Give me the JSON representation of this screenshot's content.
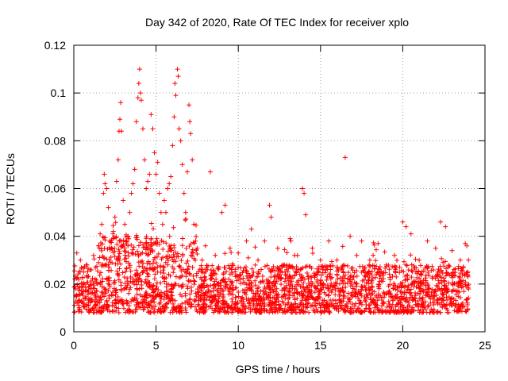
{
  "chart_data": {
    "type": "scatter",
    "title": "Day 342 of 2020, Rate Of TEC Index for receiver xplo",
    "xlabel": "GPS time / hours",
    "ylabel": "ROTI / TECUs",
    "xlim": [
      0,
      25
    ],
    "ylim": [
      0,
      0.12
    ],
    "x_ticks": [
      0,
      5,
      10,
      15,
      20,
      25
    ],
    "x_tick_labels": [
      "0",
      "5",
      "10",
      "15",
      "20",
      "25"
    ],
    "y_ticks": [
      0,
      0.02,
      0.04,
      0.06,
      0.08,
      0.1,
      0.12
    ],
    "y_tick_labels": [
      "0",
      "0.02",
      "0.04",
      "0.06",
      "0.08",
      "0.1",
      "0.12"
    ],
    "grid": true,
    "marker": "+",
    "color": "#ff0000",
    "series": [
      {
        "name": "ROTI",
        "points": [
          [
            0.1,
            0.018
          ],
          [
            0.2,
            0.012
          ],
          [
            0.3,
            0.022
          ],
          [
            0.4,
            0.03
          ],
          [
            0.5,
            0.016
          ],
          [
            0.6,
            0.025
          ],
          [
            0.7,
            0.014
          ],
          [
            0.8,
            0.028
          ],
          [
            0.9,
            0.019
          ],
          [
            1.0,
            0.026
          ],
          [
            1.1,
            0.013
          ],
          [
            1.2,
            0.032
          ],
          [
            1.3,
            0.021
          ],
          [
            1.4,
            0.017
          ],
          [
            1.5,
            0.029
          ],
          [
            1.6,
            0.041
          ],
          [
            1.7,
            0.045
          ],
          [
            1.8,
            0.058
          ],
          [
            1.85,
            0.066
          ],
          [
            1.9,
            0.062
          ],
          [
            2.0,
            0.06
          ],
          [
            2.1,
            0.052
          ],
          [
            2.2,
            0.038
          ],
          [
            2.3,
            0.035
          ],
          [
            2.4,
            0.042
          ],
          [
            2.5,
            0.048
          ],
          [
            2.6,
            0.063
          ],
          [
            2.7,
            0.072
          ],
          [
            2.75,
            0.084
          ],
          [
            2.8,
            0.089
          ],
          [
            2.85,
            0.096
          ],
          [
            2.9,
            0.084
          ],
          [
            3.0,
            0.055
          ],
          [
            3.1,
            0.045
          ],
          [
            3.2,
            0.038
          ],
          [
            3.3,
            0.04
          ],
          [
            3.4,
            0.05
          ],
          [
            3.5,
            0.058
          ],
          [
            3.6,
            0.062
          ],
          [
            3.7,
            0.068
          ],
          [
            3.8,
            0.088
          ],
          [
            3.9,
            0.098
          ],
          [
            3.95,
            0.104
          ],
          [
            4.0,
            0.11
          ],
          [
            4.05,
            0.1
          ],
          [
            4.1,
            0.097
          ],
          [
            4.2,
            0.085
          ],
          [
            4.3,
            0.072
          ],
          [
            4.4,
            0.06
          ],
          [
            4.5,
            0.063
          ],
          [
            4.6,
            0.066
          ],
          [
            4.7,
            0.091
          ],
          [
            4.8,
            0.085
          ],
          [
            4.9,
            0.075
          ],
          [
            5.0,
            0.066
          ],
          [
            5.1,
            0.071
          ],
          [
            5.2,
            0.058
          ],
          [
            5.3,
            0.05
          ],
          [
            5.4,
            0.045
          ],
          [
            5.5,
            0.055
          ],
          [
            5.6,
            0.05
          ],
          [
            5.7,
            0.06
          ],
          [
            5.8,
            0.062
          ],
          [
            5.9,
            0.065
          ],
          [
            6.0,
            0.078
          ],
          [
            6.1,
            0.09
          ],
          [
            6.15,
            0.104
          ],
          [
            6.2,
            0.099
          ],
          [
            6.3,
            0.11
          ],
          [
            6.35,
            0.107
          ],
          [
            6.4,
            0.085
          ],
          [
            6.5,
            0.08
          ],
          [
            6.6,
            0.07
          ],
          [
            6.7,
            0.058
          ],
          [
            6.8,
            0.05
          ],
          [
            6.9,
            0.067
          ],
          [
            7.0,
            0.095
          ],
          [
            7.05,
            0.088
          ],
          [
            7.1,
            0.083
          ],
          [
            7.2,
            0.072
          ],
          [
            7.3,
            0.045
          ],
          [
            7.5,
            0.035
          ],
          [
            7.8,
            0.03
          ],
          [
            8.0,
            0.036
          ],
          [
            8.3,
            0.067
          ],
          [
            8.6,
            0.032
          ],
          [
            9.0,
            0.05
          ],
          [
            9.2,
            0.053
          ],
          [
            9.5,
            0.035
          ],
          [
            10.0,
            0.033
          ],
          [
            10.5,
            0.038
          ],
          [
            10.8,
            0.043
          ],
          [
            11.2,
            0.03
          ],
          [
            11.6,
            0.038
          ],
          [
            11.9,
            0.053
          ],
          [
            12.0,
            0.048
          ],
          [
            12.4,
            0.035
          ],
          [
            12.8,
            0.028
          ],
          [
            13.2,
            0.038
          ],
          [
            13.6,
            0.032
          ],
          [
            13.9,
            0.06
          ],
          [
            14.0,
            0.058
          ],
          [
            14.1,
            0.049
          ],
          [
            14.5,
            0.035
          ],
          [
            15.0,
            0.03
          ],
          [
            15.5,
            0.038
          ],
          [
            16.0,
            0.03
          ],
          [
            16.5,
            0.073
          ],
          [
            16.8,
            0.04
          ],
          [
            17.2,
            0.032
          ],
          [
            17.5,
            0.038
          ],
          [
            18.0,
            0.03
          ],
          [
            18.5,
            0.037
          ],
          [
            19.0,
            0.028
          ],
          [
            19.5,
            0.032
          ],
          [
            20.0,
            0.046
          ],
          [
            20.2,
            0.044
          ],
          [
            20.5,
            0.041
          ],
          [
            21.0,
            0.03
          ],
          [
            21.5,
            0.038
          ],
          [
            22.0,
            0.035
          ],
          [
            22.3,
            0.046
          ],
          [
            22.6,
            0.044
          ],
          [
            23.0,
            0.034
          ],
          [
            23.5,
            0.03
          ],
          [
            23.8,
            0.037
          ],
          [
            23.9,
            0.036
          ]
        ],
        "baseline_band": [
          0.008,
          0.028
        ]
      }
    ]
  }
}
